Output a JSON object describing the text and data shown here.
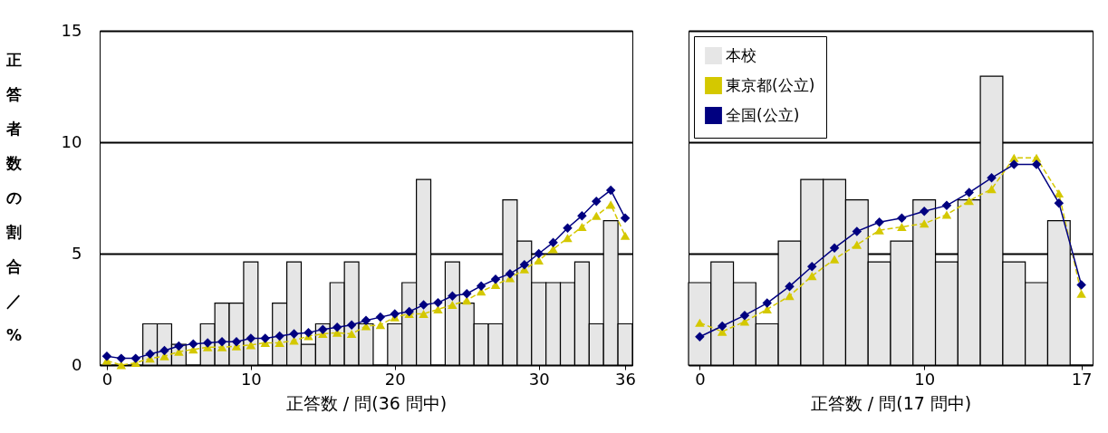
{
  "chart_data": [
    {
      "type": "bar",
      "ylabel": "正答者数の割合／%",
      "xlabel": "正答数 / 問(36 問中)",
      "x": [
        0,
        1,
        2,
        3,
        4,
        5,
        6,
        7,
        8,
        9,
        10,
        11,
        12,
        13,
        14,
        15,
        16,
        17,
        18,
        19,
        20,
        21,
        22,
        23,
        24,
        25,
        26,
        27,
        28,
        29,
        30,
        31,
        32,
        33,
        34,
        35,
        36
      ],
      "xlim": [
        -0.5,
        36.5
      ],
      "xticks": [
        0,
        10,
        20,
        30,
        36
      ],
      "ylim": [
        0,
        15
      ],
      "yticks": [
        0,
        5,
        10,
        15
      ],
      "grid": "y",
      "legend": false,
      "series": [
        {
          "color": "#e6e6e6",
          "values": [
            0,
            0,
            0,
            1.85,
            1.85,
            0.93,
            0,
            1.85,
            2.78,
            2.78,
            4.63,
            0,
            2.78,
            4.63,
            0.93,
            1.85,
            3.7,
            4.63,
            1.85,
            0,
            1.85,
            3.7,
            8.33,
            0,
            4.63,
            2.78,
            1.85,
            1.85,
            7.41,
            5.56,
            3.7,
            3.7,
            3.7,
            4.63,
            1.85,
            6.48,
            1.85
          ]
        },
        {
          "type": "line",
          "color": "#d4c800",
          "marker": "triangle",
          "line_style": "dashed",
          "values": [
            0.2,
            0,
            0.1,
            0.3,
            0.4,
            0.6,
            0.7,
            0.8,
            0.8,
            0.85,
            0.9,
            1.0,
            1.0,
            1.1,
            1.3,
            1.4,
            1.45,
            1.4,
            1.75,
            1.8,
            2.15,
            2.3,
            2.3,
            2.5,
            2.7,
            2.9,
            3.3,
            3.6,
            3.9,
            4.3,
            4.7,
            5.2,
            5.7,
            6.2,
            6.7,
            7.2,
            5.8
          ]
        },
        {
          "type": "line",
          "color": "#000080",
          "marker": "diamond",
          "line_style": "solid",
          "values": [
            0.4,
            0.3,
            0.3,
            0.5,
            0.65,
            0.85,
            0.95,
            1.0,
            1.05,
            1.05,
            1.2,
            1.2,
            1.3,
            1.4,
            1.45,
            1.6,
            1.7,
            1.8,
            2.0,
            2.15,
            2.3,
            2.4,
            2.7,
            2.8,
            3.1,
            3.2,
            3.55,
            3.85,
            4.1,
            4.5,
            5.0,
            5.5,
            6.15,
            6.7,
            7.35,
            7.85,
            6.6
          ]
        }
      ]
    },
    {
      "type": "bar",
      "xlabel": "正答数 / 問(17 問中)",
      "x": [
        0,
        1,
        2,
        3,
        4,
        5,
        6,
        7,
        8,
        9,
        10,
        11,
        12,
        13,
        14,
        15,
        16,
        17
      ],
      "xlim": [
        -0.5,
        17.5
      ],
      "xticks": [
        0,
        10,
        17
      ],
      "ylim": [
        0,
        15
      ],
      "yticks": [
        0,
        5,
        10,
        15
      ],
      "grid": "y",
      "tick_labels": "x",
      "legend": "top left",
      "series": [
        {
          "name": "本校",
          "color": "#e6e6e6",
          "values": [
            3.7,
            4.63,
            3.7,
            1.85,
            5.56,
            8.33,
            8.33,
            7.41,
            4.63,
            5.56,
            7.41,
            4.63,
            7.41,
            12.96,
            4.63,
            3.7,
            6.48,
            0
          ]
        },
        {
          "type": "line",
          "name": "東京都(公立)",
          "color": "#d4c800",
          "marker": "triangle",
          "line_style": "dashed",
          "values": [
            1.9,
            1.5,
            1.95,
            2.5,
            3.1,
            4.0,
            4.75,
            5.4,
            6.05,
            6.2,
            6.35,
            6.75,
            7.37,
            7.9,
            9.3,
            9.3,
            7.7,
            3.2
          ]
        },
        {
          "type": "line",
          "name": "全国(公立)",
          "color": "#000080",
          "marker": "diamond",
          "line_style": "solid",
          "values": [
            1.27,
            1.75,
            2.23,
            2.78,
            3.53,
            4.42,
            5.25,
            6.0,
            6.41,
            6.6,
            6.9,
            7.16,
            7.74,
            8.4,
            9.0,
            9.0,
            7.27,
            3.6
          ]
        }
      ]
    }
  ]
}
